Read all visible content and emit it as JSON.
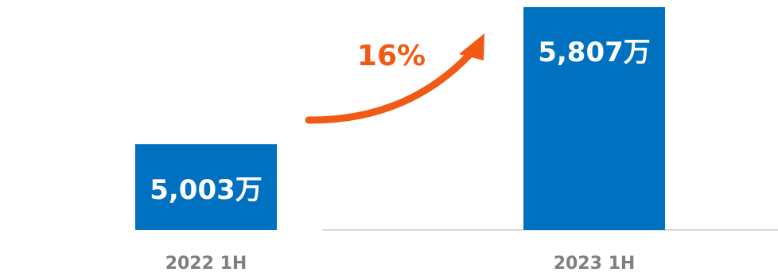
{
  "chart_data": {
    "type": "bar",
    "categories": [
      "2022 1H",
      "2023 1H"
    ],
    "values": [
      5003,
      5807
    ],
    "data_labels": [
      "5,003万",
      "5,807万"
    ],
    "ylim": [
      0,
      5807
    ],
    "grid": false,
    "annotation": {
      "text": "16%",
      "from": "2022 1H",
      "to": "2023 1H"
    }
  },
  "colors": {
    "bar": "#0070c0",
    "arrow": "#f05a14",
    "axis_line": "#d9d9d9",
    "tick_text": "#7f7f7f"
  }
}
